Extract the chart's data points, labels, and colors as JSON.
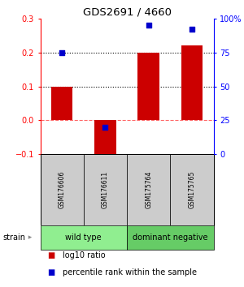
{
  "title": "GDS2691 / 4660",
  "samples": [
    "GSM176606",
    "GSM176611",
    "GSM175764",
    "GSM175765"
  ],
  "log10_ratio": [
    0.1,
    -0.12,
    0.2,
    0.22
  ],
  "percentile_rank": [
    75,
    20,
    95,
    92
  ],
  "groups": [
    {
      "label": "wild type",
      "samples": [
        0,
        1
      ],
      "color": "#90ee90"
    },
    {
      "label": "dominant negative",
      "samples": [
        2,
        3
      ],
      "color": "#66cc66"
    }
  ],
  "bar_color": "#cc0000",
  "dot_color": "#0000cc",
  "left_ylim": [
    -0.1,
    0.3
  ],
  "right_ylim": [
    0,
    100
  ],
  "left_yticks": [
    -0.1,
    0,
    0.1,
    0.2,
    0.3
  ],
  "right_yticks": [
    0,
    25,
    50,
    75,
    100
  ],
  "right_yticklabels": [
    "0",
    "25",
    "50",
    "75",
    "100%"
  ],
  "hlines_dotted": [
    0.1,
    0.2
  ],
  "hline_dashed_color": "#ff6666",
  "hline_dashed_val": 0,
  "bg_color": "#ffffff",
  "sample_box_color": "#cccccc",
  "bar_width": 0.5,
  "dot_size": 25,
  "strain_label": "strain",
  "legend_line1": "log10 ratio",
  "legend_line2": "percentile rank within the sample"
}
